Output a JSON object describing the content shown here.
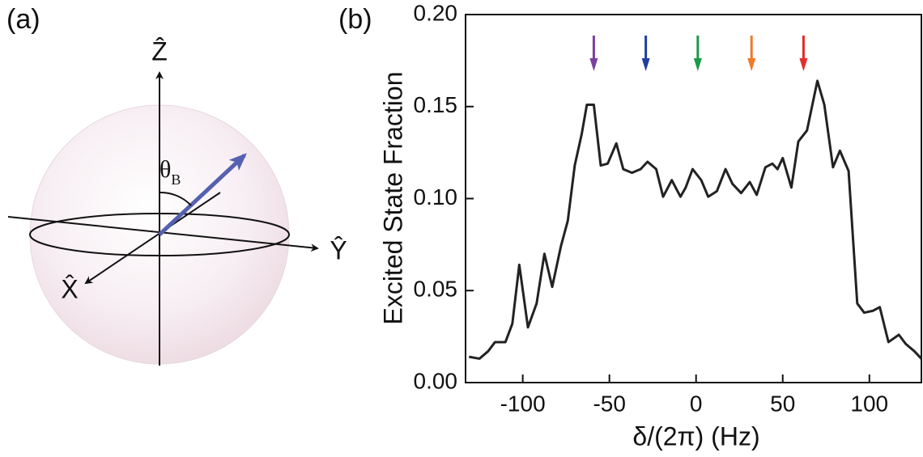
{
  "diagram": {
    "panel_label": "(a)",
    "z_label": "Ẑ",
    "y_label": "Ŷ",
    "x_label": "X̂",
    "angle_label": "θ",
    "angle_subscript": "B"
  },
  "chart_data": {
    "type": "line",
    "panel_label": "(b)",
    "x_label": "δ/(2π) (Hz)",
    "y_label": "Excited State Fraction",
    "x": [
      -131,
      -125,
      -120,
      -116,
      -110,
      -106,
      -102,
      -97,
      -92,
      -87.5,
      -83,
      -78,
      -74,
      -70,
      -66,
      -63,
      -59,
      -55,
      -51,
      -46,
      -42,
      -37,
      -32,
      -28,
      -23,
      -19,
      -14,
      -9,
      -6,
      -2,
      3,
      7,
      12,
      17,
      21,
      26,
      31,
      35,
      40,
      44,
      47,
      50,
      55,
      59,
      64,
      70,
      74,
      79,
      83,
      88,
      93,
      97,
      102,
      106,
      111,
      117,
      121,
      126,
      130
    ],
    "values": [
      0.014,
      0.013,
      0.017,
      0.022,
      0.022,
      0.032,
      0.064,
      0.03,
      0.043,
      0.07,
      0.052,
      0.074,
      0.088,
      0.118,
      0.135,
      0.151,
      0.151,
      0.118,
      0.119,
      0.13,
      0.116,
      0.114,
      0.116,
      0.12,
      0.116,
      0.101,
      0.11,
      0.101,
      0.106,
      0.116,
      0.11,
      0.101,
      0.104,
      0.116,
      0.108,
      0.103,
      0.109,
      0.102,
      0.117,
      0.119,
      0.116,
      0.122,
      0.106,
      0.131,
      0.137,
      0.164,
      0.151,
      0.117,
      0.126,
      0.115,
      0.043,
      0.038,
      0.039,
      0.041,
      0.022,
      0.026,
      0.021,
      0.017,
      0.013
    ],
    "color": "#222222",
    "markers": [
      {
        "x": -59,
        "color": "#7b3f9e"
      },
      {
        "x": -29,
        "color": "#1f3f9c"
      },
      {
        "x": 1,
        "color": "#1a9a4a"
      },
      {
        "x": 32,
        "color": "#f07a2a"
      },
      {
        "x": 62,
        "color": "#e52b2b"
      }
    ],
    "xlim": [
      -133,
      130
    ],
    "ylim": [
      0,
      0.2
    ],
    "xticks": [
      -100,
      -50,
      0,
      50,
      100
    ],
    "yticks": [
      {
        "value": 0,
        "label": "0.00"
      },
      {
        "value": 0.05,
        "label": "0.05"
      },
      {
        "value": 0.1,
        "label": "0.10"
      },
      {
        "value": 0.15,
        "label": "0.15"
      },
      {
        "value": 0.2,
        "label": "0.20"
      }
    ],
    "grid": false
  }
}
